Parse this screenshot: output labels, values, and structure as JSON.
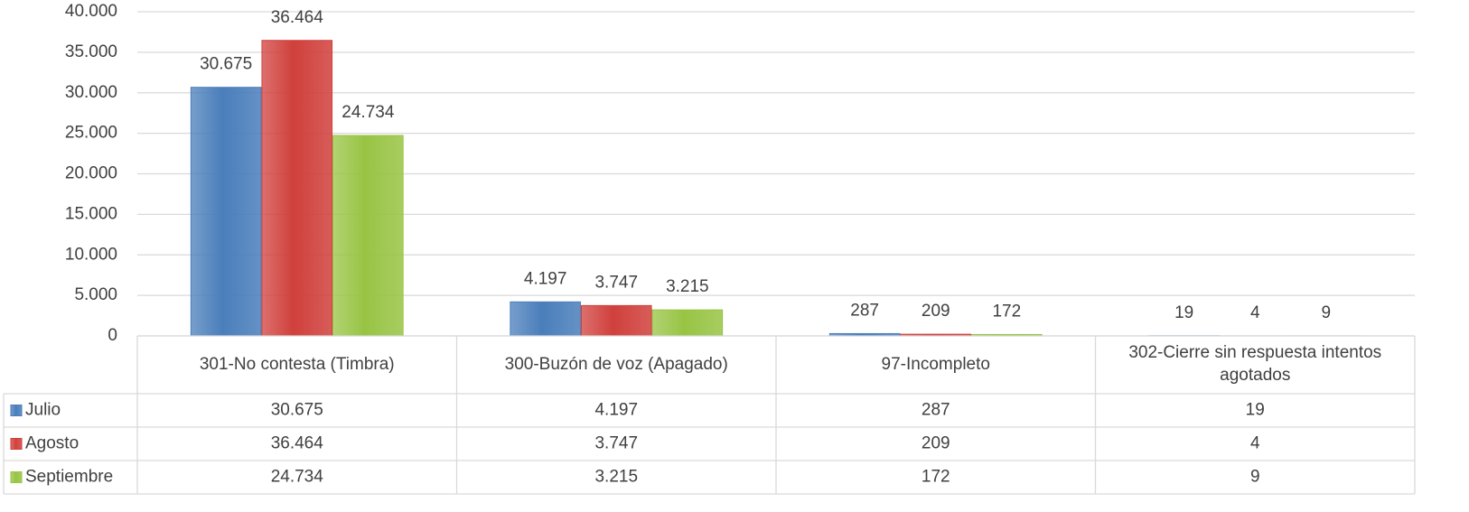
{
  "chart_data": {
    "type": "bar",
    "categories": [
      "301-No contesta (Timbra)",
      "300-Buzón de voz (Apagado)",
      "97-Incompleto",
      "302-Cierre sin respuesta intentos agotados"
    ],
    "series": [
      {
        "name": "Julio",
        "color": "#4a7ebb",
        "values": [
          30675,
          4197,
          287,
          19
        ],
        "value_labels": [
          "30.675",
          "4.197",
          "287",
          "19"
        ]
      },
      {
        "name": "Agosto",
        "color": "#d0403c",
        "values": [
          36464,
          3747,
          209,
          4
        ],
        "value_labels": [
          "36.464",
          "3.747",
          "209",
          "4"
        ]
      },
      {
        "name": "Septiembre",
        "color": "#98c444",
        "values": [
          24734,
          3215,
          172,
          9
        ],
        "value_labels": [
          "24.734",
          "3.215",
          "172",
          "9"
        ]
      }
    ],
    "ylim": [
      0,
      40000
    ],
    "yticks": [
      {
        "value": 0,
        "label": "0"
      },
      {
        "value": 5000,
        "label": "5.000"
      },
      {
        "value": 10000,
        "label": "10.000"
      },
      {
        "value": 15000,
        "label": "15.000"
      },
      {
        "value": 20000,
        "label": "20.000"
      },
      {
        "value": 25000,
        "label": "25.000"
      },
      {
        "value": 30000,
        "label": "30.000"
      },
      {
        "value": 35000,
        "label": "35.000"
      },
      {
        "value": 40000,
        "label": "40.000"
      }
    ],
    "grid": true,
    "data_table": true
  }
}
